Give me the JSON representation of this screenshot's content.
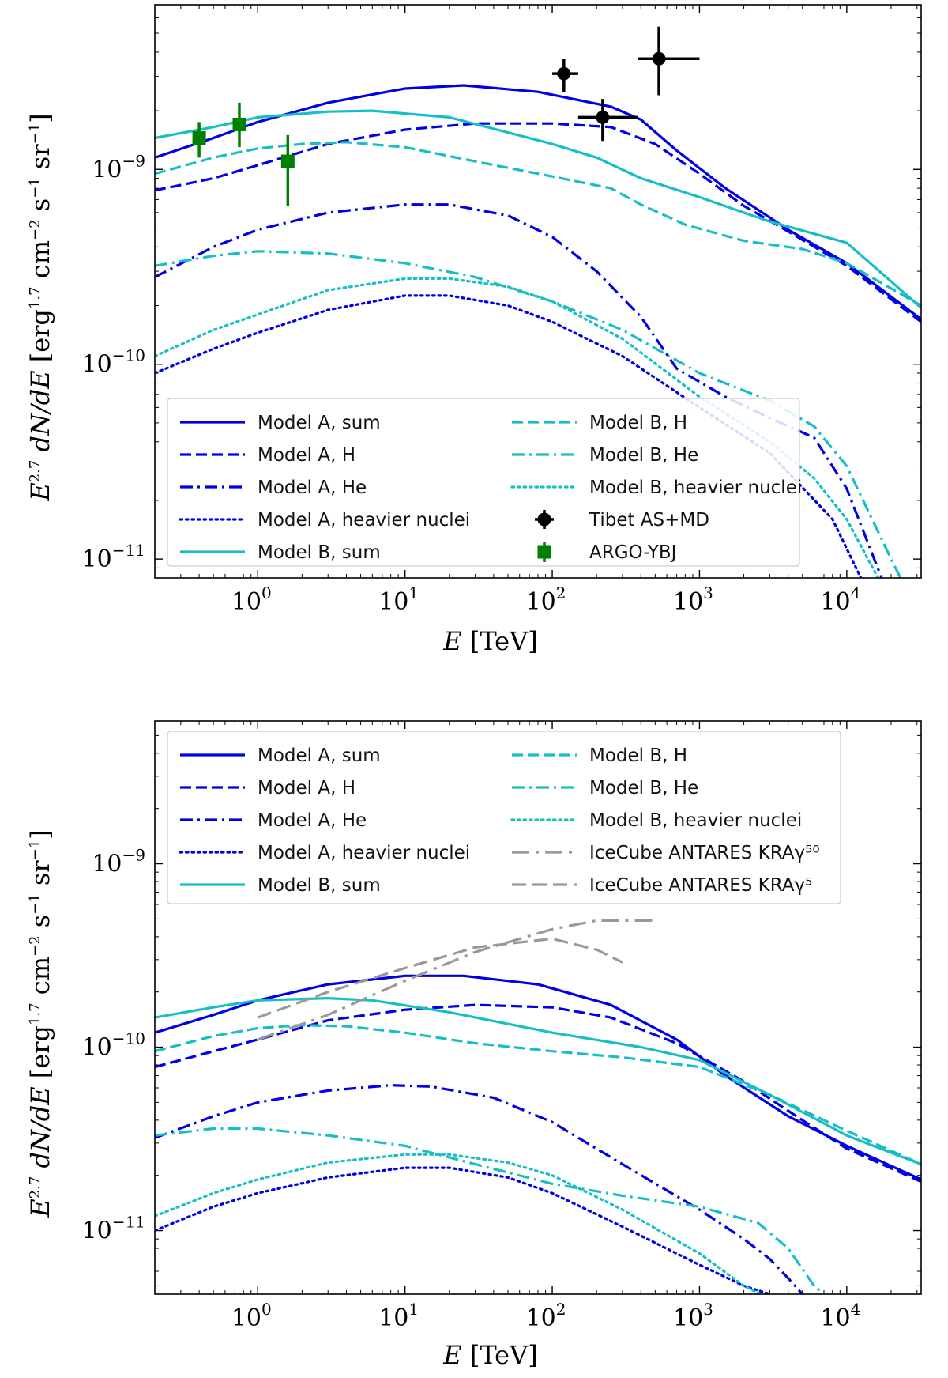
{
  "chart_data": [
    {
      "type": "line",
      "panel": "top",
      "xlabel": "E [TeV]",
      "ylabel": "E^{2.7} dN/dE [erg^{1.7} cm^{-2} s^{-1} sr^{-1}]",
      "x_scale": "log",
      "y_scale": "log",
      "xlim": [
        0.2,
        32000
      ],
      "ylim": [
        8e-12,
        7e-09
      ],
      "x_ticks": [
        {
          "value": 1,
          "base": "10",
          "exp": "0"
        },
        {
          "value": 10,
          "base": "10",
          "exp": "1"
        },
        {
          "value": 100,
          "base": "10",
          "exp": "2"
        },
        {
          "value": 1000,
          "base": "10",
          "exp": "3"
        },
        {
          "value": 10000,
          "base": "10",
          "exp": "4"
        }
      ],
      "y_ticks": [
        {
          "value": 1e-11,
          "base": "10",
          "exp": "−11"
        },
        {
          "value": 1e-10,
          "base": "10",
          "exp": "−10"
        },
        {
          "value": 1e-09,
          "base": "10",
          "exp": "−9"
        }
      ],
      "legend_position": "lower-left",
      "series": [
        {
          "name": "Model A, sum",
          "color": "#0000e6",
          "style": "solid",
          "x": [
            0.2,
            0.5,
            1,
            3,
            10,
            25,
            80,
            250,
            400,
            700,
            1500,
            4000,
            10000,
            32000
          ],
          "y": [
            1.15e-09,
            1.45e-09,
            1.75e-09,
            2.2e-09,
            2.6e-09,
            2.7e-09,
            2.5e-09,
            2.1e-09,
            1.8e-09,
            1.25e-09,
            8e-10,
            4.9e-10,
            3.3e-10,
            1.7e-10
          ]
        },
        {
          "name": "Model A, H",
          "color": "#0000e6",
          "style": "dashed",
          "x": [
            0.2,
            0.5,
            1,
            3,
            10,
            30,
            100,
            250,
            500,
            1000,
            2000,
            4000,
            10000,
            32000
          ],
          "y": [
            7.8e-10,
            9e-10,
            1.05e-09,
            1.35e-09,
            1.6e-09,
            1.72e-09,
            1.72e-09,
            1.65e-09,
            1.35e-09,
            9.5e-10,
            6.5e-10,
            4.8e-10,
            3.2e-10,
            1.65e-10
          ]
        },
        {
          "name": "Model A, He",
          "color": "#0000e6",
          "style": "dashdot",
          "x": [
            0.2,
            0.5,
            1,
            3,
            10,
            20,
            50,
            100,
            200,
            400,
            700,
            1500,
            3000,
            6000,
            10000,
            20000
          ],
          "y": [
            2.8e-10,
            4e-10,
            4.9e-10,
            6e-10,
            6.6e-10,
            6.6e-10,
            5.8e-10,
            4.5e-10,
            3e-10,
            1.75e-10,
            9.5e-11,
            6.8e-11,
            5.3e-11,
            4.2e-11,
            2.3e-11,
            6e-12
          ]
        },
        {
          "name": "Model A, heavier nuclei",
          "color": "#0000e6",
          "style": "dotted",
          "x": [
            0.2,
            0.5,
            1,
            3,
            10,
            20,
            50,
            100,
            300,
            1000,
            3000,
            8000,
            15000
          ],
          "y": [
            9e-11,
            1.2e-10,
            1.45e-10,
            1.9e-10,
            2.25e-10,
            2.25e-10,
            2e-10,
            1.65e-10,
            1.1e-10,
            6e-11,
            3.5e-11,
            1.6e-11,
            6e-12
          ]
        },
        {
          "name": "Model B, sum",
          "color": "#17bfc4",
          "style": "solid",
          "x": [
            0.2,
            0.5,
            1,
            3,
            6,
            20,
            100,
            200,
            400,
            1000,
            3000,
            10000,
            32000
          ],
          "y": [
            1.45e-09,
            1.65e-09,
            1.85e-09,
            1.98e-09,
            2e-09,
            1.85e-09,
            1.35e-09,
            1.15e-09,
            9e-10,
            7.2e-10,
            5.4e-10,
            4.2e-10,
            1.95e-10
          ]
        },
        {
          "name": "Model B, H",
          "color": "#17bfc4",
          "style": "dashed",
          "x": [
            0.2,
            0.5,
            1,
            2,
            4,
            10,
            30,
            100,
            250,
            400,
            800,
            2000,
            5000,
            10000,
            32000
          ],
          "y": [
            9.5e-10,
            1.15e-09,
            1.28e-09,
            1.35e-09,
            1.38e-09,
            1.3e-09,
            1.1e-09,
            9.2e-10,
            8e-10,
            6.6e-10,
            5.2e-10,
            4.3e-10,
            3.9e-10,
            3.3e-10,
            2e-10
          ]
        },
        {
          "name": "Model B, He",
          "color": "#17bfc4",
          "style": "dashdot",
          "x": [
            0.2,
            0.5,
            1,
            3,
            10,
            30,
            100,
            300,
            1000,
            3000,
            6000,
            10000,
            20000,
            28000
          ],
          "y": [
            3.2e-10,
            3.6e-10,
            3.8e-10,
            3.7e-10,
            3.3e-10,
            2.8e-10,
            2.1e-10,
            1.5e-10,
            9e-11,
            6.5e-11,
            4.8e-11,
            3e-11,
            1e-11,
            6e-12
          ]
        },
        {
          "name": "Model B, heavier nuclei",
          "color": "#17bfc4",
          "style": "dotted",
          "x": [
            0.2,
            0.5,
            1,
            3,
            10,
            20,
            50,
            100,
            300,
            1000,
            3000,
            6000,
            10000,
            20000
          ],
          "y": [
            1.1e-10,
            1.5e-10,
            1.8e-10,
            2.4e-10,
            2.75e-10,
            2.75e-10,
            2.5e-10,
            2.1e-10,
            1.35e-10,
            6.8e-11,
            4e-11,
            2.6e-11,
            1.6e-11,
            6e-12
          ]
        }
      ],
      "data_points": [
        {
          "name": "Tibet AS+MD",
          "color": "#000000",
          "marker": "circle",
          "points": [
            {
              "x": 120,
              "y": 3.1e-09,
              "xerr": [
                100,
                150
              ],
              "yerr": [
                2.5e-09,
                3.7e-09
              ]
            },
            {
              "x": 220,
              "y": 1.85e-09,
              "xerr": [
                150,
                380
              ],
              "yerr": [
                1.4e-09,
                2.3e-09
              ]
            },
            {
              "x": 530,
              "y": 3.7e-09,
              "xerr": [
                380,
                1000
              ],
              "yerr": [
                2.4e-09,
                5.4e-09
              ]
            }
          ]
        },
        {
          "name": "ARGO-YBJ",
          "color": "#008000",
          "marker": "square",
          "points": [
            {
              "x": 0.4,
              "y": 1.45e-09,
              "yerr": [
                1.15e-09,
                1.75e-09
              ]
            },
            {
              "x": 0.75,
              "y": 1.7e-09,
              "yerr": [
                1.3e-09,
                2.2e-09
              ]
            },
            {
              "x": 1.6,
              "y": 1.1e-09,
              "yerr": [
                6.5e-10,
                1.5e-09
              ]
            }
          ]
        }
      ]
    },
    {
      "type": "line",
      "panel": "bottom",
      "xlabel": "E [TeV]",
      "ylabel": "E^{2.7} dN/dE [erg^{1.7} cm^{-2} s^{-1} sr^{-1}]",
      "x_scale": "log",
      "y_scale": "log",
      "xlim": [
        0.2,
        32000
      ],
      "ylim": [
        4.5e-12,
        6e-09
      ],
      "x_ticks": [
        {
          "value": 1,
          "base": "10",
          "exp": "0"
        },
        {
          "value": 10,
          "base": "10",
          "exp": "1"
        },
        {
          "value": 100,
          "base": "10",
          "exp": "2"
        },
        {
          "value": 1000,
          "base": "10",
          "exp": "3"
        },
        {
          "value": 10000,
          "base": "10",
          "exp": "4"
        }
      ],
      "y_ticks": [
        {
          "value": 1e-11,
          "base": "10",
          "exp": "−11"
        },
        {
          "value": 1e-10,
          "base": "10",
          "exp": "−10"
        },
        {
          "value": 1e-09,
          "base": "10",
          "exp": "−9"
        }
      ],
      "legend_position": "upper-left",
      "series": [
        {
          "name": "Model A, sum",
          "color": "#0000e6",
          "style": "solid",
          "x": [
            0.2,
            0.5,
            1,
            3,
            10,
            25,
            80,
            250,
            700,
            1500,
            4000,
            10000,
            32000
          ],
          "y": [
            1.2e-10,
            1.5e-10,
            1.8e-10,
            2.2e-10,
            2.45e-10,
            2.45e-10,
            2.2e-10,
            1.7e-10,
            1.1e-10,
            7e-11,
            4.2e-11,
            2.9e-11,
            1.9e-11
          ]
        },
        {
          "name": "Model A, H",
          "color": "#0000e6",
          "style": "dashed",
          "x": [
            0.2,
            0.5,
            1,
            3,
            10,
            30,
            100,
            250,
            700,
            2000,
            5000,
            10000,
            32000
          ],
          "y": [
            7.8e-11,
            9.5e-11,
            1.1e-10,
            1.4e-10,
            1.6e-10,
            1.7e-10,
            1.65e-10,
            1.45e-10,
            1.05e-10,
            6.5e-11,
            4e-11,
            2.8e-11,
            1.85e-11
          ]
        },
        {
          "name": "Model A, He",
          "color": "#0000e6",
          "style": "dashdot",
          "x": [
            0.2,
            0.5,
            1,
            3,
            8,
            15,
            40,
            100,
            300,
            1000,
            2000,
            3000,
            4000,
            5000
          ],
          "y": [
            3.2e-11,
            4.2e-11,
            5e-11,
            5.8e-11,
            6.2e-11,
            6.1e-11,
            5.3e-11,
            3.9e-11,
            2.3e-11,
            1.3e-11,
            9e-12,
            7e-12,
            5.5e-12,
            4.5e-12
          ]
        },
        {
          "name": "Model A, heavier nuclei",
          "color": "#0000e6",
          "style": "dotted",
          "x": [
            0.2,
            0.5,
            1,
            3,
            10,
            20,
            50,
            100,
            300,
            1000,
            2000,
            3000
          ],
          "y": [
            1e-11,
            1.35e-11,
            1.6e-11,
            1.95e-11,
            2.2e-11,
            2.2e-11,
            1.95e-11,
            1.6e-11,
            1.05e-11,
            6.5e-12,
            5e-12,
            4.5e-12
          ]
        },
        {
          "name": "Model B, sum",
          "color": "#17bfc4",
          "style": "solid",
          "x": [
            0.2,
            0.5,
            1,
            3,
            6,
            20,
            100,
            400,
            1000,
            3000,
            10000,
            32000
          ],
          "y": [
            1.45e-10,
            1.65e-10,
            1.8e-10,
            1.85e-10,
            1.8e-10,
            1.55e-10,
            1.2e-10,
            1e-10,
            8.5e-11,
            5.5e-11,
            3.3e-11,
            2.3e-11
          ]
        },
        {
          "name": "Model B, H",
          "color": "#17bfc4",
          "style": "dashed",
          "x": [
            0.2,
            0.5,
            1,
            2,
            4,
            10,
            30,
            100,
            300,
            1000,
            3000,
            10000,
            32000
          ],
          "y": [
            9.5e-11,
            1.15e-10,
            1.27e-10,
            1.32e-10,
            1.3e-10,
            1.2e-10,
            1.05e-10,
            9.5e-11,
            8.8e-11,
            7.8e-11,
            5.5e-11,
            3.5e-11,
            2.3e-11
          ]
        },
        {
          "name": "Model B, He",
          "color": "#17bfc4",
          "style": "dashdot",
          "x": [
            0.2,
            0.5,
            1,
            3,
            10,
            30,
            100,
            300,
            1000,
            2500,
            4000,
            6000,
            7000
          ],
          "y": [
            3.3e-11,
            3.6e-11,
            3.6e-11,
            3.3e-11,
            2.9e-11,
            2.3e-11,
            1.8e-11,
            1.55e-11,
            1.35e-11,
            1.1e-11,
            8e-12,
            5e-12,
            4.5e-12
          ]
        },
        {
          "name": "Model B, heavier nuclei",
          "color": "#17bfc4",
          "style": "dotted",
          "x": [
            0.2,
            0.5,
            1,
            3,
            10,
            20,
            50,
            100,
            300,
            1000,
            2000,
            2600
          ],
          "y": [
            1.2e-11,
            1.6e-11,
            1.9e-11,
            2.35e-11,
            2.6e-11,
            2.6e-11,
            2.35e-11,
            2e-11,
            1.3e-11,
            7.5e-12,
            5e-12,
            4.5e-12
          ]
        },
        {
          "name": "IceCube ANTARES KRAγ⁵⁰",
          "color": "#999999",
          "style": "longdashdot",
          "x": [
            1,
            3,
            10,
            30,
            100,
            200,
            500
          ],
          "y": [
            1.1e-10,
            1.5e-10,
            2.3e-10,
            3.3e-10,
            4.4e-10,
            4.9e-10,
            4.9e-10
          ]
        },
        {
          "name": "IceCube ANTARES KRAγ⁵",
          "color": "#999999",
          "style": "longdashed",
          "x": [
            1,
            3,
            10,
            30,
            100,
            200,
            300
          ],
          "y": [
            1.45e-10,
            2e-10,
            2.7e-10,
            3.5e-10,
            3.9e-10,
            3.4e-10,
            2.9e-10
          ]
        }
      ]
    }
  ]
}
